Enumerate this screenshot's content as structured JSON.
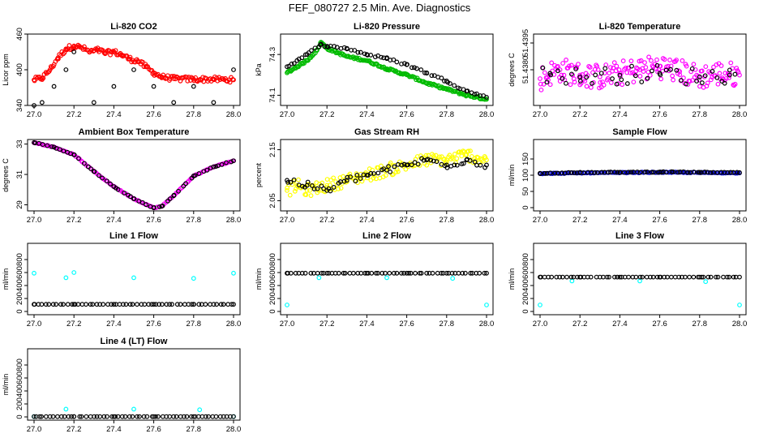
{
  "title": "FEF_080727  2.5 Min. Ave. Diagnostics",
  "chart_data": [
    {
      "type": "scatter",
      "title": "Li-820 CO2",
      "ylabel": "Licor ppm",
      "xlim": [
        27.0,
        28.0
      ],
      "ylim": [
        340,
        460
      ],
      "xticks": [
        "27.0",
        "27.2",
        "27.4",
        "27.6",
        "27.8",
        "28.0"
      ],
      "yticks": [
        "340",
        "400",
        "460"
      ],
      "series": [
        {
          "color": "#ff0000",
          "marker": "circle",
          "x": [
            27.0,
            27.04,
            27.08,
            27.12,
            27.16,
            27.2,
            27.24,
            27.28,
            27.32,
            27.36,
            27.4,
            27.44,
            27.48,
            27.52,
            27.56,
            27.6,
            27.64,
            27.7,
            27.8,
            27.9,
            28.0
          ],
          "y": [
            383,
            386,
            400,
            420,
            435,
            440,
            437,
            430,
            433,
            428,
            430,
            425,
            418,
            415,
            405,
            395,
            388,
            385,
            384,
            384,
            383
          ]
        },
        {
          "color": "#000000",
          "marker": "circle",
          "x": [
            27.0,
            27.04,
            27.1,
            27.16,
            27.2,
            27.3,
            27.4,
            27.5,
            27.6,
            27.7,
            27.8,
            27.9,
            28.0
          ],
          "y": [
            340,
            345,
            372,
            400,
            430,
            345,
            372,
            400,
            372,
            345,
            372,
            345,
            400
          ]
        }
      ]
    },
    {
      "type": "scatter",
      "title": "Li-820 Pressure",
      "ylabel": "kPa",
      "xlim": [
        27.0,
        28.0
      ],
      "ylim": [
        74.05,
        74.4
      ],
      "xticks": [
        "27.0",
        "27.2",
        "27.4",
        "27.6",
        "27.8",
        "28.0"
      ],
      "yticks": [
        "74.1",
        "74.3"
      ],
      "series": [
        {
          "color": "#00bb00",
          "marker": "circle",
          "x": [
            27.0,
            27.05,
            27.1,
            27.15,
            27.17,
            27.2,
            27.25,
            27.3,
            27.4,
            27.5,
            27.6,
            27.7,
            27.8,
            27.9,
            28.0
          ],
          "y": [
            74.21,
            74.24,
            74.27,
            74.32,
            74.36,
            74.33,
            74.31,
            74.29,
            74.27,
            74.23,
            74.2,
            74.16,
            74.13,
            74.1,
            74.08
          ]
        },
        {
          "color": "#000000",
          "marker": "circle",
          "x": [
            27.0,
            27.05,
            27.1,
            27.17,
            27.2,
            27.3,
            27.4,
            27.5,
            27.6,
            27.7,
            27.8,
            27.9,
            28.0
          ],
          "y": [
            74.24,
            74.27,
            74.3,
            74.35,
            74.34,
            74.33,
            74.3,
            74.28,
            74.25,
            74.21,
            74.17,
            74.12,
            74.09
          ]
        }
      ]
    },
    {
      "type": "scatter",
      "title": "Li-820 Temperature",
      "ylabel": "degrees C",
      "xlim": [
        27.0,
        28.0
      ],
      "ylim": [
        51.436,
        51.44
      ],
      "xticks": [
        "27.0",
        "27.2",
        "27.4",
        "27.6",
        "27.8",
        "28.0"
      ],
      "yticks": [
        "51.4380",
        "51.4395"
      ],
      "series": [
        {
          "color": "#ff00ff",
          "marker": "circle",
          "x": [
            27.0,
            27.05,
            27.1,
            27.2,
            27.3,
            27.4,
            27.5,
            27.6,
            27.7,
            27.8,
            27.9,
            28.0
          ],
          "y": [
            51.4375,
            51.4378,
            51.438,
            51.4377,
            51.4376,
            51.4378,
            51.438,
            51.4382,
            51.4379,
            51.4376,
            51.4378,
            51.4377
          ]
        },
        {
          "color": "#000000",
          "marker": "circle",
          "x": [
            27.05,
            27.2,
            27.4,
            27.6,
            27.8,
            27.95
          ],
          "y": [
            51.4378,
            51.4376,
            51.4377,
            51.4378,
            51.4376,
            51.4377
          ]
        }
      ]
    },
    {
      "type": "scatter",
      "title": "Ambient Box Temperature",
      "ylabel": "degrees C",
      "xlim": [
        27.0,
        28.0
      ],
      "ylim": [
        28.6,
        33.3
      ],
      "xticks": [
        "27.0",
        "27.2",
        "27.4",
        "27.6",
        "27.8",
        "28.0"
      ],
      "yticks": [
        "29",
        "31",
        "33"
      ],
      "series": [
        {
          "color": "#ff00ff",
          "marker": "circle",
          "x": [
            27.0,
            27.1,
            27.2,
            27.3,
            27.4,
            27.5,
            27.6,
            27.64,
            27.7,
            27.8,
            27.9,
            28.0
          ],
          "y": [
            33.1,
            32.8,
            32.3,
            31.2,
            30.2,
            29.4,
            28.8,
            28.9,
            29.6,
            30.9,
            31.5,
            31.9
          ]
        },
        {
          "color": "#000000",
          "marker": "circle",
          "x": [
            27.0,
            27.1,
            27.2,
            27.3,
            27.4,
            27.5,
            27.6,
            27.64,
            27.7,
            27.8,
            27.9,
            28.0
          ],
          "y": [
            33.1,
            32.8,
            32.3,
            31.2,
            30.2,
            29.4,
            28.8,
            28.9,
            29.6,
            30.9,
            31.5,
            31.9
          ]
        }
      ]
    },
    {
      "type": "scatter",
      "title": "Gas Stream RH",
      "ylabel": "percent",
      "xlim": [
        27.0,
        28.0
      ],
      "ylim": [
        2.03,
        2.17
      ],
      "xticks": [
        "27.0",
        "27.2",
        "27.4",
        "27.6",
        "27.8",
        "28.0"
      ],
      "yticks": [
        "2.05",
        "2.15"
      ],
      "series": [
        {
          "color": "#ffff00",
          "marker": "circle",
          "x": [
            27.0,
            27.05,
            27.1,
            27.2,
            27.3,
            27.4,
            27.5,
            27.6,
            27.7,
            27.8,
            27.9,
            28.0
          ],
          "y": [
            2.07,
            2.08,
            2.07,
            2.08,
            2.09,
            2.1,
            2.11,
            2.12,
            2.13,
            2.13,
            2.14,
            2.13
          ]
        },
        {
          "color": "#000000",
          "marker": "circle",
          "x": [
            27.0,
            27.1,
            27.2,
            27.3,
            27.4,
            27.5,
            27.6,
            27.7,
            27.8,
            27.9,
            28.0
          ],
          "y": [
            2.09,
            2.08,
            2.07,
            2.09,
            2.1,
            2.11,
            2.12,
            2.13,
            2.12,
            2.13,
            2.12
          ]
        }
      ]
    },
    {
      "type": "scatter",
      "title": "Sample Flow",
      "ylabel": "ml/min",
      "xlim": [
        27.0,
        28.0
      ],
      "ylim": [
        -10,
        210
      ],
      "xticks": [
        "27.0",
        "27.2",
        "27.4",
        "27.6",
        "27.8",
        "28.0"
      ],
      "yticks": [
        "0",
        "50",
        "100",
        "150"
      ],
      "series": [
        {
          "color": "#0000cc",
          "marker": "circle",
          "x": [
            27.0,
            27.2,
            27.4,
            27.6,
            27.8,
            28.0
          ],
          "y": [
            105,
            107,
            108,
            109,
            108,
            107
          ]
        },
        {
          "color": "#000000",
          "marker": "circle",
          "x": [
            27.0,
            27.2,
            27.4,
            27.6,
            27.8,
            28.0
          ],
          "y": [
            106,
            108,
            109,
            110,
            109,
            108
          ]
        }
      ]
    },
    {
      "type": "scatter",
      "title": "Line 1 Flow",
      "ylabel": "ml/min",
      "xlim": [
        27.0,
        28.0
      ],
      "ylim": [
        -50,
        1050
      ],
      "xticks": [
        "27.0",
        "27.2",
        "27.4",
        "27.6",
        "27.8",
        "28.0"
      ],
      "yticks": [
        "0",
        "200",
        "400",
        "600",
        "800"
      ],
      "series": [
        {
          "color": "#00ffff",
          "marker": "circle",
          "x": [
            27.0,
            27.16,
            27.2,
            27.5,
            27.8,
            28.0
          ],
          "y": [
            590,
            520,
            600,
            520,
            510,
            590
          ]
        },
        {
          "color": "#000000",
          "marker": "circle",
          "x": [
            27.0,
            27.2,
            27.4,
            27.6,
            27.8,
            28.0
          ],
          "y": [
            110,
            110,
            110,
            110,
            110,
            110
          ]
        }
      ]
    },
    {
      "type": "scatter",
      "title": "Line 2 Flow",
      "ylabel": "ml/min",
      "xlim": [
        27.0,
        28.0
      ],
      "ylim": [
        -50,
        1050
      ],
      "xticks": [
        "27.0",
        "27.2",
        "27.4",
        "27.6",
        "27.8",
        "28.0"
      ],
      "yticks": [
        "0",
        "200",
        "400",
        "600",
        "800"
      ],
      "series": [
        {
          "color": "#00ffff",
          "marker": "circle",
          "x": [
            27.0,
            27.16,
            27.5,
            27.83,
            28.0
          ],
          "y": [
            100,
            520,
            520,
            510,
            100
          ]
        },
        {
          "color": "#000000",
          "marker": "circle",
          "x": [
            27.0,
            27.2,
            27.4,
            27.6,
            27.8,
            28.0
          ],
          "y": [
            590,
            590,
            590,
            590,
            590,
            590
          ]
        }
      ]
    },
    {
      "type": "scatter",
      "title": "Line 3 Flow",
      "ylabel": "ml/min",
      "xlim": [
        27.0,
        28.0
      ],
      "ylim": [
        -50,
        1050
      ],
      "xticks": [
        "27.0",
        "27.2",
        "27.4",
        "27.6",
        "27.8",
        "28.0"
      ],
      "yticks": [
        "0",
        "200",
        "400",
        "600",
        "800"
      ],
      "series": [
        {
          "color": "#00ffff",
          "marker": "circle",
          "x": [
            27.0,
            27.16,
            27.5,
            27.83,
            28.0
          ],
          "y": [
            100,
            470,
            470,
            460,
            100
          ]
        },
        {
          "color": "#000000",
          "marker": "circle",
          "x": [
            27.0,
            27.2,
            27.4,
            27.6,
            27.8,
            28.0
          ],
          "y": [
            530,
            530,
            530,
            530,
            530,
            530
          ]
        }
      ]
    },
    {
      "type": "scatter",
      "title": "Line 4 (LT) Flow",
      "ylabel": "ml/min",
      "xlim": [
        27.0,
        28.0
      ],
      "ylim": [
        -50,
        1050
      ],
      "xticks": [
        "27.0",
        "27.2",
        "27.4",
        "27.6",
        "27.8",
        "28.0"
      ],
      "yticks": [
        "0",
        "200",
        "400",
        "600",
        "800"
      ],
      "series": [
        {
          "color": "#00ffff",
          "marker": "circle",
          "x": [
            27.0,
            27.16,
            27.5,
            27.83,
            28.0
          ],
          "y": [
            5,
            120,
            120,
            110,
            5
          ]
        },
        {
          "color": "#000000",
          "marker": "circle",
          "x": [
            27.0,
            27.2,
            27.4,
            27.6,
            27.8,
            28.0
          ],
          "y": [
            5,
            5,
            5,
            5,
            5,
            5
          ]
        }
      ]
    }
  ]
}
